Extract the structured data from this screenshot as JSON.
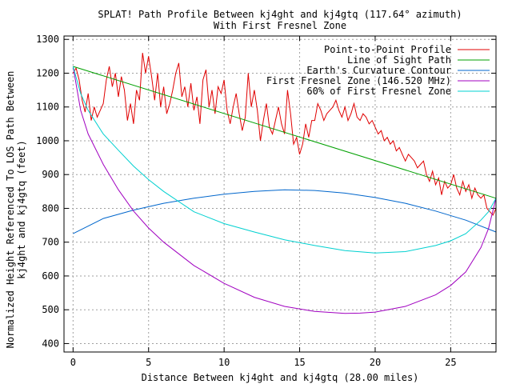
{
  "chart_data": {
    "type": "line",
    "title": "SPLAT! Path Profile Between kj4ght and kj4gtq (117.64° azimuth)",
    "subtitle": "With First Fresnel Zone",
    "xlabel": "Distance Between kj4ght and kj4gtq (28.00 miles)",
    "ylabel_line1": "Normalized Height Referenced To LOS Path Between",
    "ylabel_line2": "kj4ght and kj4gtq (feet)",
    "xlim": [
      -0.6,
      28.0
    ],
    "ylim": [
      375,
      1310
    ],
    "xticks": [
      0,
      5,
      10,
      15,
      20,
      25
    ],
    "yticks": [
      400,
      500,
      600,
      700,
      800,
      900,
      1000,
      1100,
      1200,
      1300
    ],
    "grid": true,
    "legend_position": "top-right",
    "series": [
      {
        "name": "Point-to-Point Profile",
        "color": "#e00000",
        "x": [
          0,
          0.2,
          0.4,
          0.6,
          0.8,
          1.0,
          1.2,
          1.4,
          1.6,
          1.8,
          2.0,
          2.2,
          2.4,
          2.6,
          2.8,
          3.0,
          3.2,
          3.4,
          3.6,
          3.8,
          4.0,
          4.2,
          4.4,
          4.6,
          4.8,
          5.0,
          5.2,
          5.4,
          5.6,
          5.8,
          6.0,
          6.2,
          6.4,
          6.6,
          6.8,
          7.0,
          7.2,
          7.4,
          7.6,
          7.8,
          8.0,
          8.2,
          8.4,
          8.6,
          8.8,
          9.0,
          9.2,
          9.4,
          9.6,
          9.8,
          10.0,
          10.2,
          10.4,
          10.6,
          10.8,
          11.0,
          11.2,
          11.4,
          11.6,
          11.8,
          12.0,
          12.2,
          12.4,
          12.6,
          12.8,
          13.0,
          13.2,
          13.4,
          13.6,
          13.8,
          14.0,
          14.2,
          14.4,
          14.6,
          14.8,
          15.0,
          15.2,
          15.4,
          15.6,
          15.8,
          16.0,
          16.2,
          16.4,
          16.6,
          16.8,
          17.0,
          17.2,
          17.4,
          17.6,
          17.8,
          18.0,
          18.2,
          18.4,
          18.6,
          18.8,
          19.0,
          19.2,
          19.4,
          19.6,
          19.8,
          20.0,
          20.2,
          20.4,
          20.6,
          20.8,
          21.0,
          21.2,
          21.4,
          21.6,
          21.8,
          22.0,
          22.2,
          22.4,
          22.6,
          22.8,
          23.0,
          23.2,
          23.4,
          23.6,
          23.8,
          24.0,
          24.2,
          24.4,
          24.6,
          24.8,
          25.0,
          25.2,
          25.4,
          25.6,
          25.8,
          26.0,
          26.2,
          26.4,
          26.6,
          26.8,
          27.0,
          27.2,
          27.4,
          27.6,
          27.8,
          28.0
        ],
        "values": [
          1200,
          1215,
          1180,
          1120,
          1085,
          1140,
          1060,
          1100,
          1070,
          1090,
          1110,
          1180,
          1220,
          1160,
          1200,
          1130,
          1190,
          1150,
          1060,
          1110,
          1050,
          1150,
          1120,
          1260,
          1200,
          1250,
          1190,
          1120,
          1200,
          1100,
          1160,
          1080,
          1110,
          1150,
          1200,
          1230,
          1130,
          1160,
          1100,
          1170,
          1090,
          1130,
          1050,
          1180,
          1210,
          1100,
          1150,
          1080,
          1160,
          1140,
          1180,
          1090,
          1050,
          1100,
          1140,
          1080,
          1030,
          1070,
          1200,
          1100,
          1150,
          1090,
          1000,
          1060,
          1110,
          1040,
          1020,
          1060,
          1100,
          1050,
          1020,
          1150,
          1080,
          990,
          1010,
          960,
          990,
          1050,
          1010,
          1060,
          1060,
          1110,
          1090,
          1060,
          1080,
          1090,
          1100,
          1120,
          1090,
          1070,
          1100,
          1060,
          1080,
          1110,
          1070,
          1060,
          1080,
          1070,
          1050,
          1060,
          1040,
          1020,
          1030,
          1000,
          1010,
          990,
          1000,
          970,
          980,
          960,
          940,
          960,
          950,
          940,
          920,
          930,
          940,
          900,
          880,
          910,
          870,
          890,
          840,
          880,
          860,
          870,
          900,
          860,
          840,
          880,
          850,
          870,
          830,
          860,
          840,
          830,
          840,
          800,
          790,
          780,
          800
        ]
      },
      {
        "name": "Line of Sight Path",
        "color": "#00a000",
        "x": [
          0,
          28.0
        ],
        "values": [
          1220,
          830
        ]
      },
      {
        "name": "Earth's Curvature Contour",
        "color": "#0066cc",
        "x": [
          0,
          2,
          4,
          6,
          8,
          10,
          12,
          14,
          16,
          18,
          20,
          22,
          24,
          26,
          28
        ],
        "values": [
          725,
          770,
          795,
          815,
          830,
          842,
          850,
          855,
          853,
          845,
          832,
          815,
          792,
          765,
          730
        ]
      },
      {
        "name": "First Fresnel Zone (146.520 MHz)",
        "color": "#a000c0",
        "x": [
          0,
          0.5,
          1,
          2,
          3,
          4,
          5,
          6,
          8,
          10,
          12,
          14,
          16,
          18,
          19,
          20,
          22,
          24,
          25,
          26,
          27,
          27.5,
          28
        ],
        "values": [
          1220,
          1090,
          1020,
          930,
          855,
          792,
          742,
          700,
          631,
          578,
          537,
          510,
          495,
          489,
          490,
          493,
          510,
          544,
          572,
          612,
          684,
          740,
          830
        ]
      },
      {
        "name": "60% of First Fresnel Zone",
        "color": "#00d0d0",
        "x": [
          0,
          0.5,
          1,
          2,
          3,
          4,
          5,
          6,
          8,
          10,
          12,
          14,
          16,
          18,
          20,
          22,
          24,
          25,
          26,
          27,
          27.5,
          28
        ],
        "values": [
          1220,
          1140,
          1090,
          1020,
          972,
          925,
          885,
          850,
          790,
          755,
          730,
          707,
          690,
          675,
          668,
          672,
          690,
          704,
          725,
          765,
          790,
          830
        ]
      }
    ]
  }
}
